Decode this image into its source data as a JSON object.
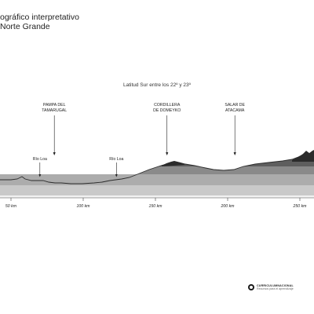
{
  "title": {
    "line1": "ográfico interpretativo",
    "line2": "Norte Grande"
  },
  "subtitle": "Latitud Sur entre los 22º y 23º",
  "landforms": [
    {
      "id": "cordillera-costa",
      "line1": "CORDILLERA",
      "line2": "DE LA COSTA",
      "km": 27
    },
    {
      "id": "pampa-tamarugal",
      "line1": "PAMPA DEL",
      "line2": "TAMARUGAL",
      "km": 80
    },
    {
      "id": "cordillera-domeyko",
      "line1": "CORDILLERA",
      "line2": "DE DOMEYKO",
      "km": 158
    },
    {
      "id": "salar-atacama",
      "line1": "SALAR DE",
      "line2": "ATACAMA",
      "km": 205
    },
    {
      "id": "cordillera-andes",
      "line1": "C",
      "line2": "DE",
      "km": 275
    }
  ],
  "rivers": [
    {
      "label": "Río Loa",
      "km": 70
    },
    {
      "label": "Río Loa",
      "km": 123
    }
  ],
  "axis": {
    "ticks": [
      {
        "label": "50 km",
        "km": 50
      },
      {
        "label": "100 km",
        "km": 100
      },
      {
        "label": "150 km",
        "km": 150
      },
      {
        "label": "200 km",
        "km": 200
      },
      {
        "label": "250 km",
        "km": 250
      }
    ]
  },
  "logo": {
    "line1": "CURRICULUMNACIONAL",
    "line2": "Recursos para el aprendizaje"
  },
  "colors": {
    "band_darkest": "#5e5e5e",
    "band_dark": "#8a8a8a",
    "band_mid": "#acacac",
    "band_light": "#c9c9c9",
    "band_lightest": "#e3e3e3",
    "terrain": "#2b2b2b"
  }
}
